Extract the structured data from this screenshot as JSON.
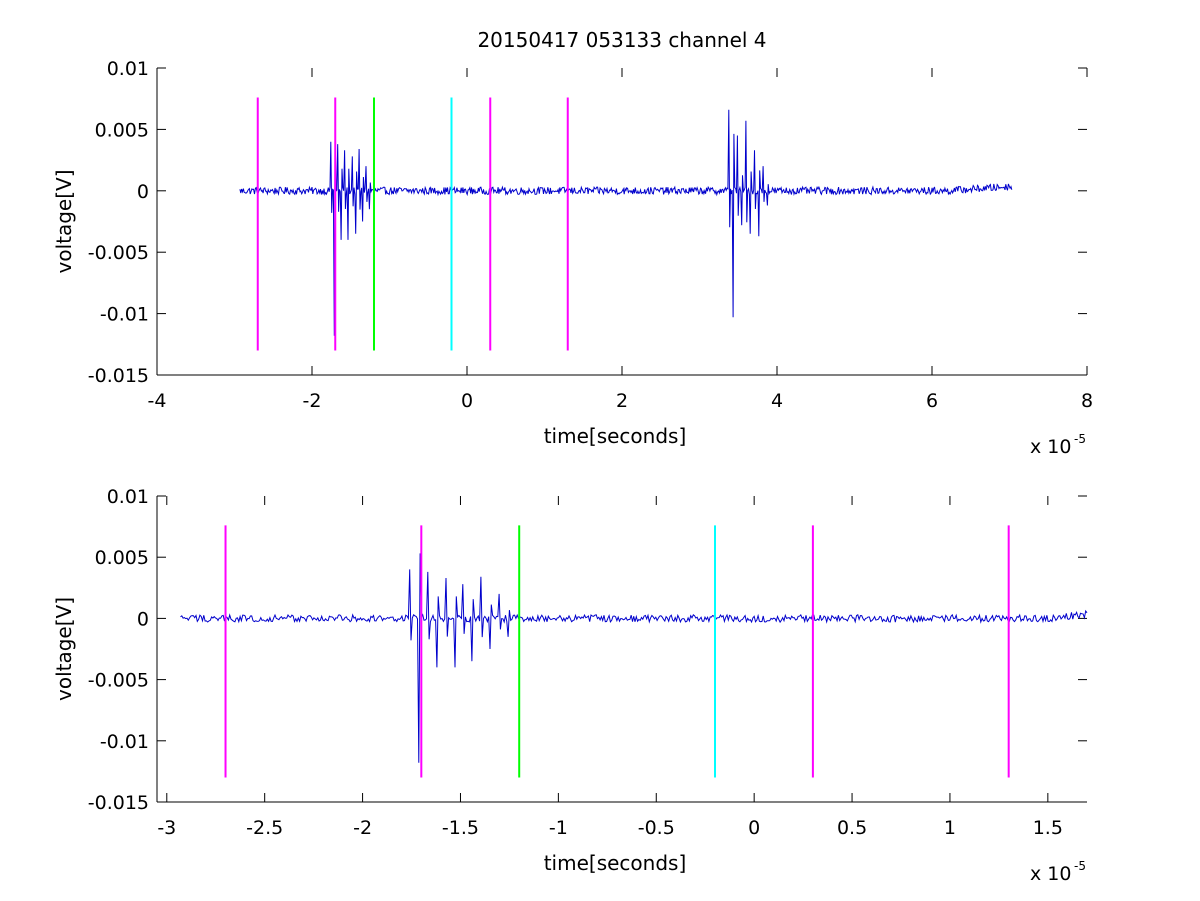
{
  "figure": {
    "title": "20150417 053133 channel 4"
  },
  "chart_data": [
    {
      "type": "line",
      "xlabel": "time[seconds]",
      "ylabel": "voltage[V]",
      "x_exponent_label": "x 10",
      "x_exponent": "-5",
      "xlim": [
        -4,
        8
      ],
      "ylim": [
        -0.015,
        0.01
      ],
      "xticks": [
        "-4",
        "-2",
        "0",
        "2",
        "4",
        "6",
        "8"
      ],
      "yticks": [
        "0.01",
        "0.005",
        "0",
        "-0.005",
        "-0.01",
        "-0.015"
      ],
      "grid": false,
      "signal_color": "#0000cc",
      "signal": {
        "x_start": -2.93,
        "x_end": 7.03,
        "baseline_noise": 0.0003,
        "bursts": [
          {
            "x": -1.76,
            "values": [
              0.004,
              -0.0118,
              0.0038,
              -0.004,
              0.0033,
              -0.004,
              0.0028,
              -0.0035,
              0.0034,
              -0.0025,
              0.002,
              -0.0015
            ]
          },
          {
            "x": 3.38,
            "values": [
              0.0066,
              -0.0103,
              0.0045,
              -0.0028,
              0.0057,
              -0.0035,
              0.0033,
              -0.0037,
              0.002,
              -0.0012
            ]
          }
        ],
        "late_offset": {
          "x_start": 6.2,
          "x_end": 7.03,
          "value": 0.0006
        }
      },
      "markers": [
        {
          "x": -2.7,
          "color": "#ff00ff"
        },
        {
          "x": -1.7,
          "color": "#ff00ff"
        },
        {
          "x": -1.2,
          "color": "#00ff00"
        },
        {
          "x": -0.2,
          "color": "#00ffff"
        },
        {
          "x": 0.3,
          "color": "#ff00ff"
        },
        {
          "x": 1.3,
          "color": "#ff00ff"
        }
      ],
      "marker_range": [
        -0.013,
        0.0076
      ]
    },
    {
      "type": "line",
      "xlabel": "time[seconds]",
      "ylabel": "voltage[V]",
      "x_exponent_label": "x 10",
      "x_exponent": "-5",
      "xlim": [
        -3.05,
        1.7
      ],
      "ylim": [
        -0.015,
        0.01
      ],
      "xticks": [
        "-3",
        "-2.5",
        "-2",
        "-1.5",
        "-1",
        "-0.5",
        "0",
        "0.5",
        "1",
        "1.5"
      ],
      "yticks": [
        "0.01",
        "0.005",
        "0",
        "-0.005",
        "-0.01",
        "-0.015"
      ],
      "grid": false,
      "signal_color": "#0000cc",
      "signal": {
        "x_start": -2.93,
        "x_end": 1.7,
        "baseline_noise": 0.0003,
        "bursts": [
          {
            "x": -1.76,
            "values": [
              0.004,
              -0.0118,
              0.0038,
              -0.004,
              0.0033,
              -0.004,
              0.0028,
              -0.0035,
              0.0034,
              -0.0025,
              0.002,
              -0.0015
            ]
          }
        ],
        "late_offset": {
          "x_start": 1.5,
          "x_end": 1.7,
          "value": 0.0006
        }
      },
      "markers": [
        {
          "x": -2.7,
          "color": "#ff00ff"
        },
        {
          "x": -1.7,
          "color": "#ff00ff"
        },
        {
          "x": -1.2,
          "color": "#00ff00"
        },
        {
          "x": -0.2,
          "color": "#00ffff"
        },
        {
          "x": 0.3,
          "color": "#ff00ff"
        },
        {
          "x": 1.3,
          "color": "#ff00ff"
        }
      ],
      "marker_range": [
        -0.013,
        0.0076
      ]
    }
  ]
}
